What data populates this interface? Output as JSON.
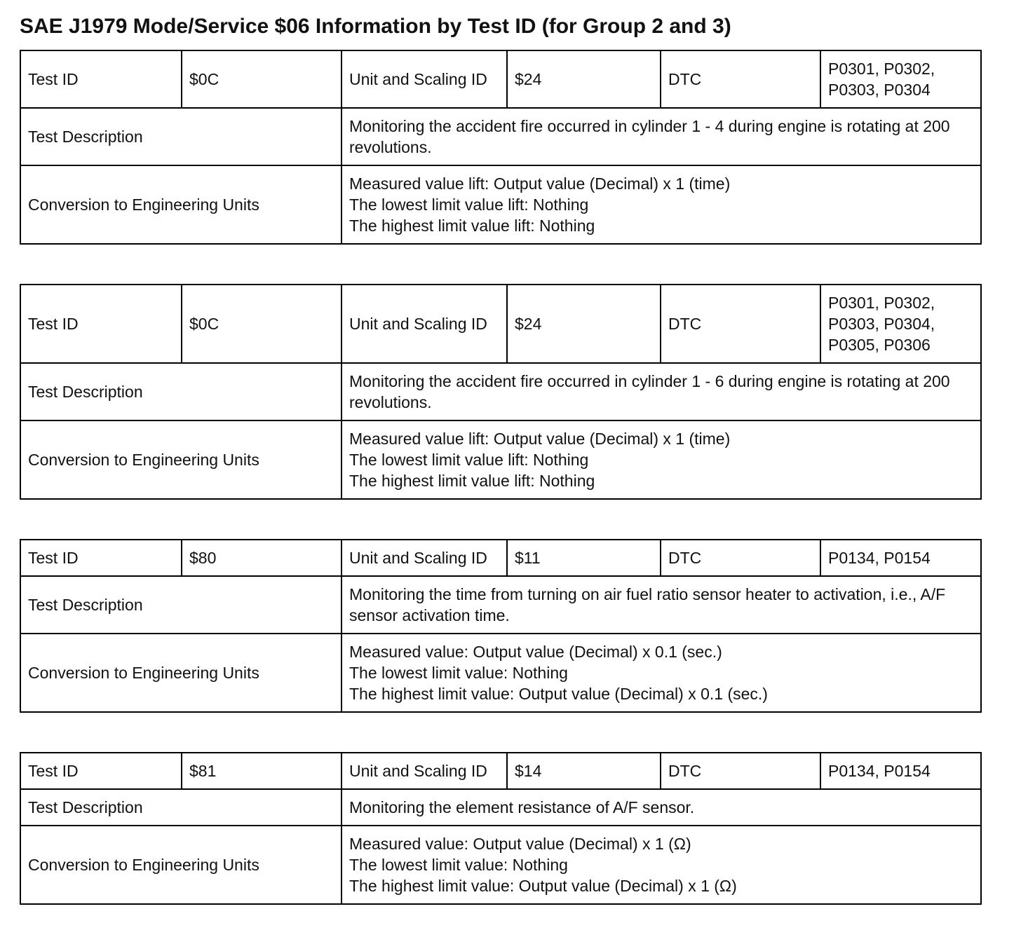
{
  "title": "SAE J1979 Mode/Service $06 Information by Test ID (for Group 2 and 3)",
  "tables": [
    {
      "test_id_label": "Test ID",
      "test_id": "$0C",
      "unit_label": "Unit and Scaling ID",
      "unit": "$24",
      "dtc_label": "DTC",
      "dtc": [
        "P0301, P0302,",
        "P0303, P0304"
      ],
      "description_label": "Test Description",
      "description": "Monitoring the accident fire occurred in cylinder 1 - 4 during engine is rotating at 200 revolutions.",
      "conversion_label": "Conversion to Engineering Units",
      "conversion": [
        "Measured value lift: Output value (Decimal) x 1 (time)",
        "The lowest limit value lift: Nothing",
        "The highest limit value lift: Nothing"
      ]
    },
    {
      "test_id_label": "Test ID",
      "test_id": "$0C",
      "unit_label": "Unit and Scaling ID",
      "unit": "$24",
      "dtc_label": "DTC",
      "dtc": [
        "P0301, P0302,",
        "P0303, P0304,",
        "P0305, P0306"
      ],
      "description_label": "Test Description",
      "description": "Monitoring the accident fire occurred in cylinder 1 - 6 during engine is rotating at 200 revolutions.",
      "conversion_label": "Conversion to Engineering Units",
      "conversion": [
        "Measured value lift: Output value (Decimal) x 1 (time)",
        "The lowest limit value lift: Nothing",
        "The highest limit value lift: Nothing"
      ]
    },
    {
      "test_id_label": "Test ID",
      "test_id": "$80",
      "unit_label": "Unit and Scaling ID",
      "unit": "$11",
      "dtc_label": "DTC",
      "dtc": [
        "P0134, P0154"
      ],
      "description_label": "Test Description",
      "description": "Monitoring the time from turning on air fuel ratio sensor heater to activation, i.e., A/F sensor activation time.",
      "conversion_label": "Conversion to Engineering Units",
      "conversion": [
        "Measured value: Output value (Decimal) x 0.1 (sec.)",
        "The lowest limit value: Nothing",
        "The highest limit value: Output value (Decimal) x 0.1 (sec.)"
      ]
    },
    {
      "test_id_label": "Test ID",
      "test_id": "$81",
      "unit_label": "Unit and Scaling ID",
      "unit": "$14",
      "dtc_label": "DTC",
      "dtc": [
        "P0134, P0154"
      ],
      "description_label": "Test Description",
      "description": "Monitoring the element resistance of A/F sensor.",
      "conversion_label": "Conversion to Engineering Units",
      "conversion": [
        "Measured value: Output value (Decimal) x 1 (Ω)",
        "The lowest limit value: Nothing",
        "The highest limit value: Output value (Decimal) x 1 (Ω)"
      ]
    }
  ]
}
